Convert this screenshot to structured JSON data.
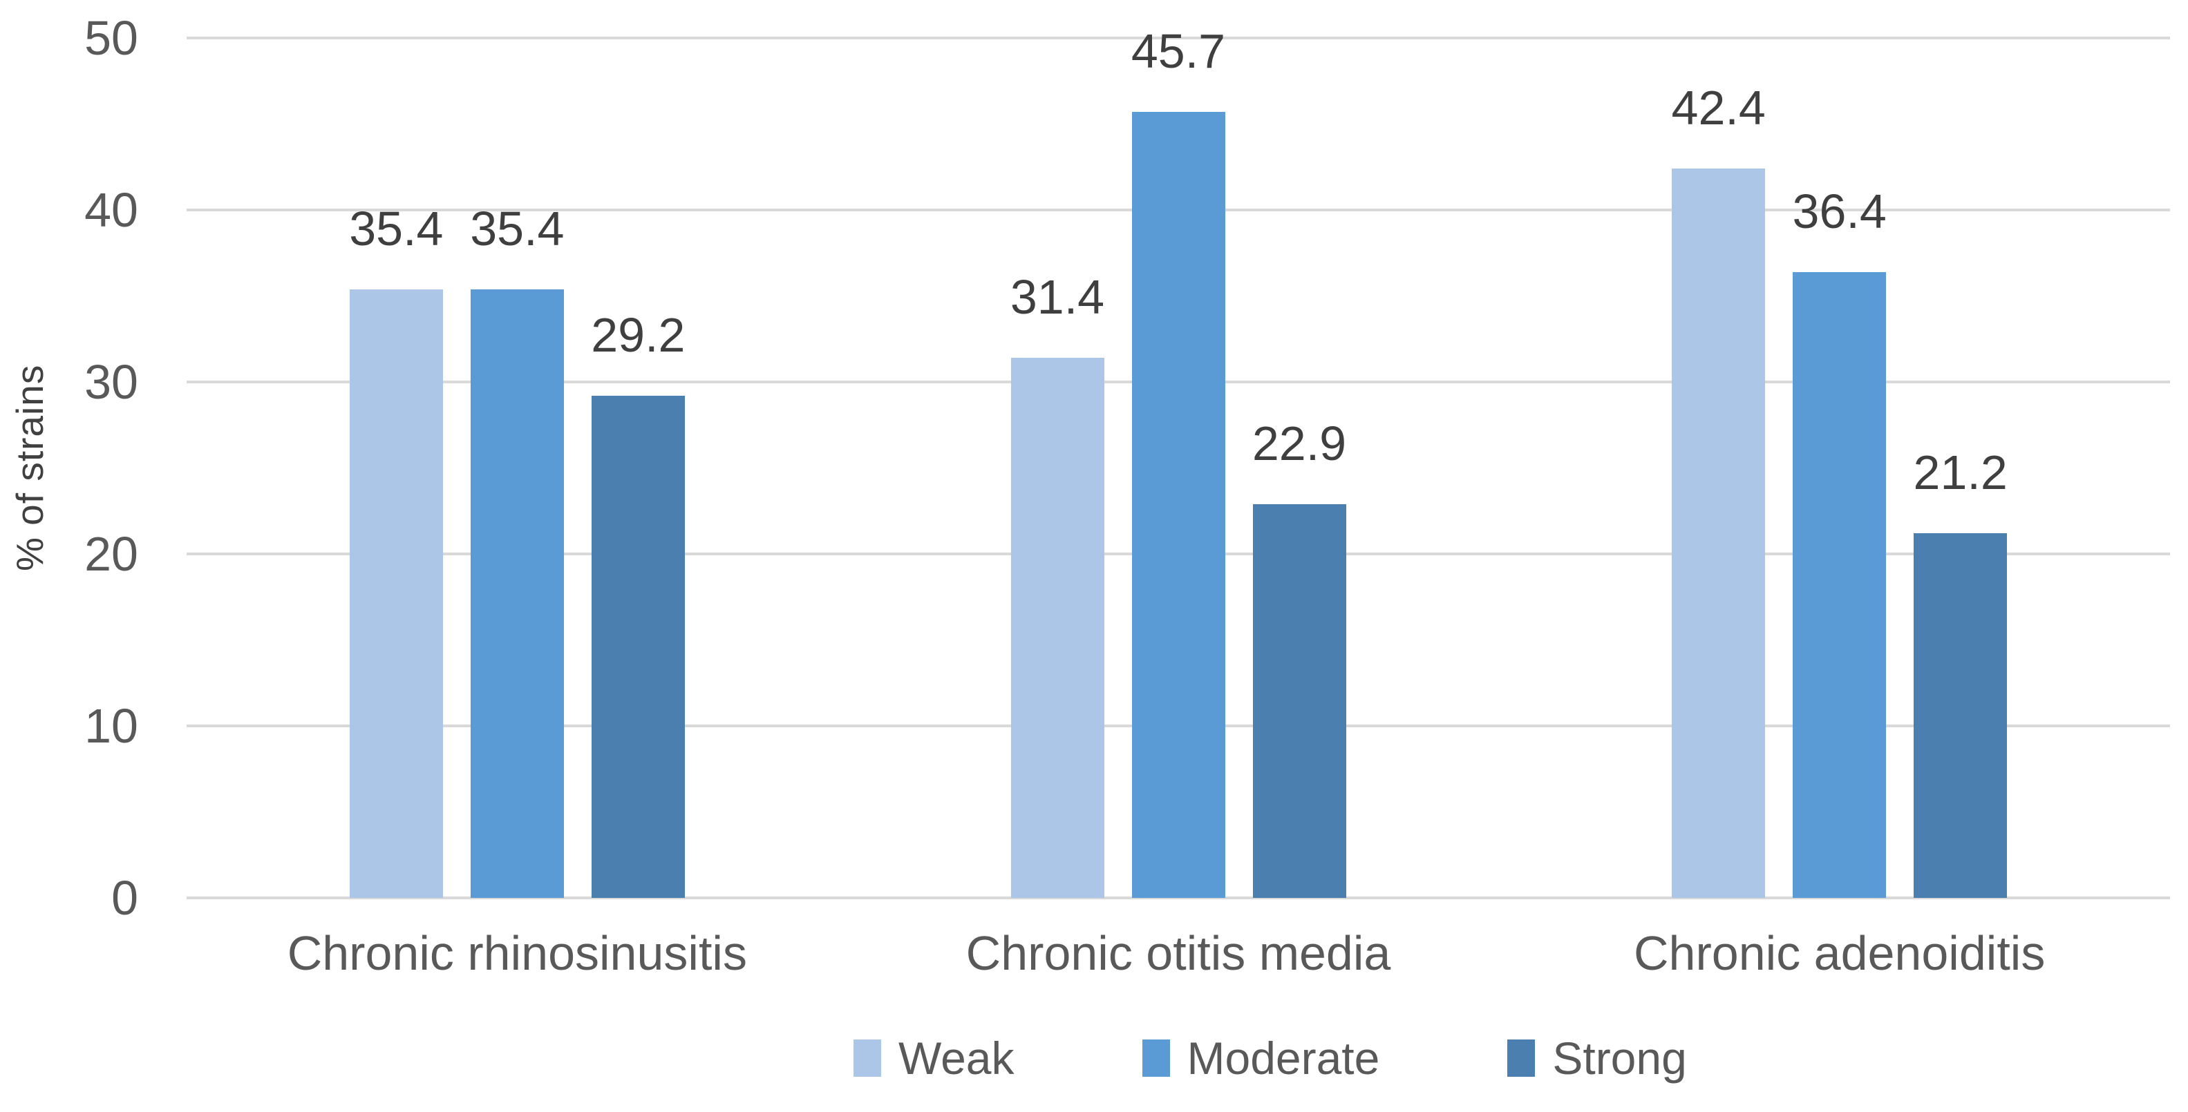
{
  "chart_data": {
    "type": "bar",
    "title": "",
    "ylabel": "% of strains",
    "categories": [
      "Chronic rhinosinusitis",
      "Chronic otitis media",
      "Chronic adenoiditis"
    ],
    "series": [
      {
        "name": "Weak",
        "color": "#ABC6E6",
        "values": [
          35.4,
          31.4,
          42.4
        ]
      },
      {
        "name": "Moderate",
        "color": "#5B9BD5",
        "values": [
          35.4,
          45.7,
          36.4
        ]
      },
      {
        "name": "Strong",
        "color": "#4A7FB0",
        "values": [
          29.2,
          22.9,
          21.2
        ]
      }
    ],
    "data_labels": [
      "35.4",
      "35.4",
      "29.2",
      "31.4",
      "45.7",
      "22.9",
      "42.4",
      "36.4",
      "21.2"
    ],
    "ylim": [
      0,
      50
    ],
    "yticks": [
      0,
      10,
      20,
      30,
      40,
      50
    ],
    "grid": "horizontal",
    "gridline_color": "#D9D9D9",
    "legend_position": "bottom",
    "legend_labels": [
      "Weak",
      "Moderate",
      "Strong"
    ],
    "axis_text_color": "#595959",
    "data_label_color": "#3F3F3F"
  }
}
